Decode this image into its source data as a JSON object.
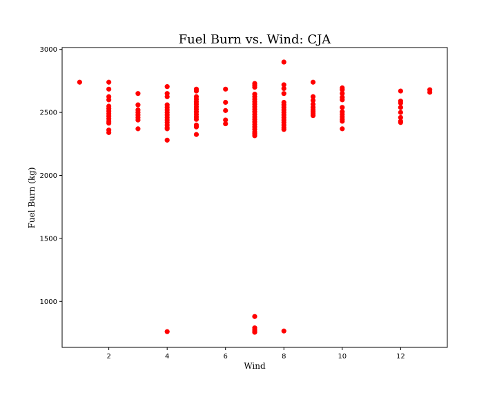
{
  "chart_data": {
    "type": "scatter",
    "title": "Fuel Burn vs. Wind: CJA",
    "xlabel": "Wind",
    "ylabel": "Fuel Burn (kg)",
    "xlim": [
      0.4,
      13.6
    ],
    "ylim": [
      635,
      3015
    ],
    "xticks": [
      2,
      4,
      6,
      8,
      10,
      12
    ],
    "yticks": [
      1000,
      1500,
      2000,
      2500,
      3000
    ],
    "grid": false,
    "marker_color": "#ff0000",
    "points": [
      [
        1,
        2740
      ],
      [
        2,
        2740
      ],
      [
        2,
        2685
      ],
      [
        2,
        2625
      ],
      [
        2,
        2600
      ],
      [
        2,
        2550
      ],
      [
        2,
        2530
      ],
      [
        2,
        2510
      ],
      [
        2,
        2490
      ],
      [
        2,
        2470
      ],
      [
        2,
        2450
      ],
      [
        2,
        2430
      ],
      [
        2,
        2415
      ],
      [
        2,
        2360
      ],
      [
        2,
        2340
      ],
      [
        3,
        2650
      ],
      [
        3,
        2560
      ],
      [
        3,
        2520
      ],
      [
        3,
        2500
      ],
      [
        3,
        2480
      ],
      [
        3,
        2460
      ],
      [
        3,
        2440
      ],
      [
        3,
        2370
      ],
      [
        4,
        2705
      ],
      [
        4,
        2650
      ],
      [
        4,
        2625
      ],
      [
        4,
        2560
      ],
      [
        4,
        2540
      ],
      [
        4,
        2520
      ],
      [
        4,
        2500
      ],
      [
        4,
        2480
      ],
      [
        4,
        2460
      ],
      [
        4,
        2440
      ],
      [
        4,
        2420
      ],
      [
        4,
        2400
      ],
      [
        4,
        2380
      ],
      [
        4,
        2370
      ],
      [
        4,
        2280
      ],
      [
        4,
        760
      ],
      [
        5,
        2685
      ],
      [
        5,
        2670
      ],
      [
        5,
        2625
      ],
      [
        5,
        2605
      ],
      [
        5,
        2585
      ],
      [
        5,
        2565
      ],
      [
        5,
        2545
      ],
      [
        5,
        2525
      ],
      [
        5,
        2505
      ],
      [
        5,
        2485
      ],
      [
        5,
        2465
      ],
      [
        5,
        2445
      ],
      [
        5,
        2400
      ],
      [
        5,
        2385
      ],
      [
        5,
        2325
      ],
      [
        6,
        2685
      ],
      [
        6,
        2580
      ],
      [
        6,
        2515
      ],
      [
        6,
        2440
      ],
      [
        6,
        2410
      ],
      [
        7,
        2730
      ],
      [
        7,
        2715
      ],
      [
        7,
        2700
      ],
      [
        7,
        2645
      ],
      [
        7,
        2625
      ],
      [
        7,
        2605
      ],
      [
        7,
        2585
      ],
      [
        7,
        2565
      ],
      [
        7,
        2545
      ],
      [
        7,
        2525
      ],
      [
        7,
        2505
      ],
      [
        7,
        2485
      ],
      [
        7,
        2465
      ],
      [
        7,
        2445
      ],
      [
        7,
        2425
      ],
      [
        7,
        2405
      ],
      [
        7,
        2385
      ],
      [
        7,
        2365
      ],
      [
        7,
        2345
      ],
      [
        7,
        2330
      ],
      [
        7,
        2315
      ],
      [
        7,
        880
      ],
      [
        7,
        790
      ],
      [
        7,
        775
      ],
      [
        7,
        765
      ],
      [
        7,
        755
      ],
      [
        8,
        2900
      ],
      [
        8,
        2720
      ],
      [
        8,
        2690
      ],
      [
        8,
        2650
      ],
      [
        8,
        2580
      ],
      [
        8,
        2560
      ],
      [
        8,
        2540
      ],
      [
        8,
        2520
      ],
      [
        8,
        2500
      ],
      [
        8,
        2480
      ],
      [
        8,
        2460
      ],
      [
        8,
        2440
      ],
      [
        8,
        2420
      ],
      [
        8,
        2400
      ],
      [
        8,
        2380
      ],
      [
        8,
        2365
      ],
      [
        8,
        765
      ],
      [
        9,
        2740
      ],
      [
        9,
        2625
      ],
      [
        9,
        2595
      ],
      [
        9,
        2565
      ],
      [
        9,
        2540
      ],
      [
        9,
        2520
      ],
      [
        9,
        2505
      ],
      [
        9,
        2490
      ],
      [
        9,
        2475
      ],
      [
        10,
        2695
      ],
      [
        10,
        2680
      ],
      [
        10,
        2650
      ],
      [
        10,
        2620
      ],
      [
        10,
        2600
      ],
      [
        10,
        2540
      ],
      [
        10,
        2505
      ],
      [
        10,
        2485
      ],
      [
        10,
        2465
      ],
      [
        10,
        2445
      ],
      [
        10,
        2430
      ],
      [
        10,
        2370
      ],
      [
        12,
        2670
      ],
      [
        12,
        2590
      ],
      [
        12,
        2575
      ],
      [
        12,
        2540
      ],
      [
        12,
        2500
      ],
      [
        12,
        2460
      ],
      [
        12,
        2430
      ],
      [
        12,
        2420
      ],
      [
        13,
        2680
      ],
      [
        13,
        2660
      ]
    ]
  }
}
